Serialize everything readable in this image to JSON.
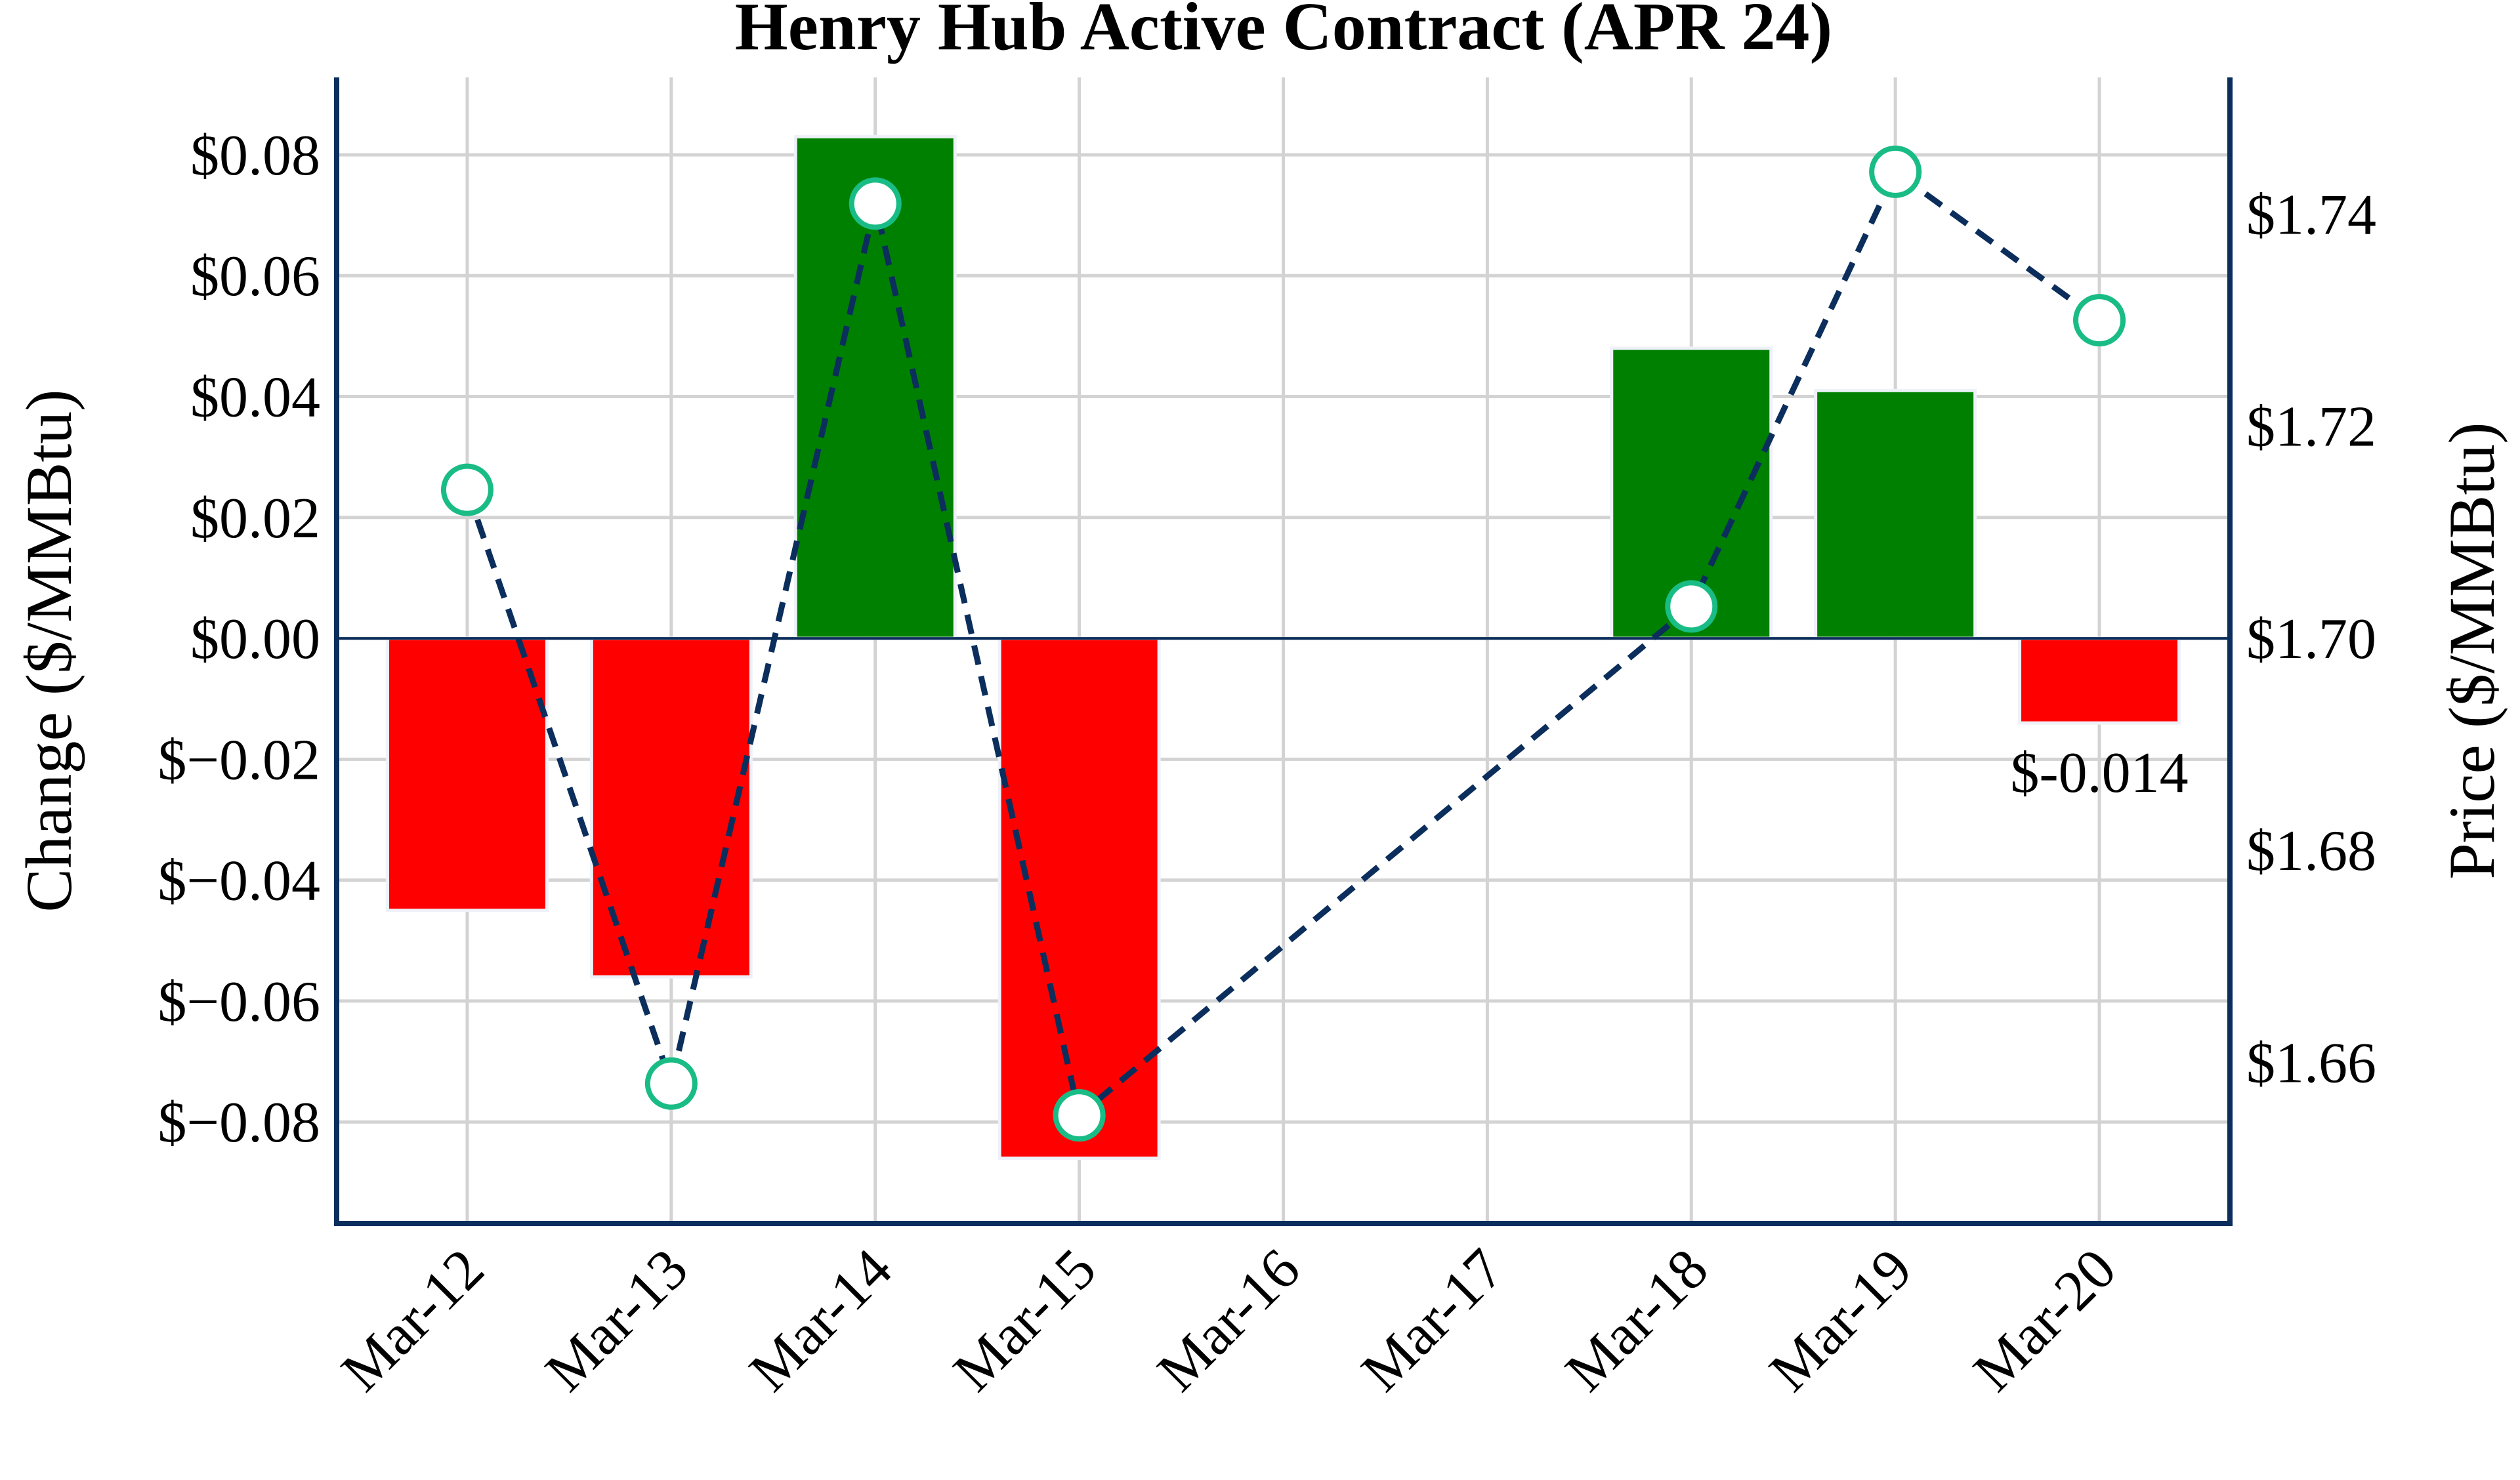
{
  "chart_data": {
    "type": "bar",
    "title": "Henry Hub Active Contract (APR 24)",
    "categories": [
      "Mar-12",
      "Mar-13",
      "Mar-14",
      "Mar-15",
      "Mar-16",
      "Mar-17",
      "Mar-18",
      "Mar-19",
      "Mar-20"
    ],
    "series": [
      {
        "name": "Change",
        "type": "bar",
        "axis": "left",
        "values": [
          -0.045,
          -0.056,
          0.083,
          -0.086,
          0,
          0,
          0.048,
          0.041,
          -0.014
        ]
      },
      {
        "name": "Price",
        "type": "line",
        "axis": "right",
        "style": "dashed",
        "values": [
          1.714,
          1.658,
          1.741,
          1.655,
          null,
          null,
          1.703,
          1.744,
          1.73
        ]
      }
    ],
    "ylabel": "Change ($/MMBtu)",
    "y2label": "Price ($/MMBtu)",
    "ylim": [
      -0.0968,
      0.0928
    ],
    "y2lim": [
      1.6448,
      1.7529
    ],
    "xlim": [
      -0.64,
      8.64
    ],
    "yticks": [
      -0.08,
      -0.06,
      -0.04,
      -0.02,
      0,
      0.02,
      0.04,
      0.06,
      0.08
    ],
    "ytick_labels": [
      "$−0.08",
      "$−0.06",
      "$−0.04",
      "$−0.02",
      "$0.00",
      "$0.02",
      "$0.04",
      "$0.06",
      "$0.08"
    ],
    "y2ticks": [
      1.66,
      1.68,
      1.7,
      1.72,
      1.74
    ],
    "y2tick_labels": [
      "$1.66",
      "$1.68",
      "$1.70",
      "$1.72",
      "$1.74"
    ],
    "annotation": {
      "index": 8,
      "text": "$-0.014"
    },
    "grid": true,
    "colors": {
      "positive": "#008000",
      "negative": "#ff0000",
      "line": "#0b2e5c",
      "marker_edge": "#1abc86",
      "spine": "#0b2e5c",
      "grid": "#d3d3d3"
    }
  }
}
